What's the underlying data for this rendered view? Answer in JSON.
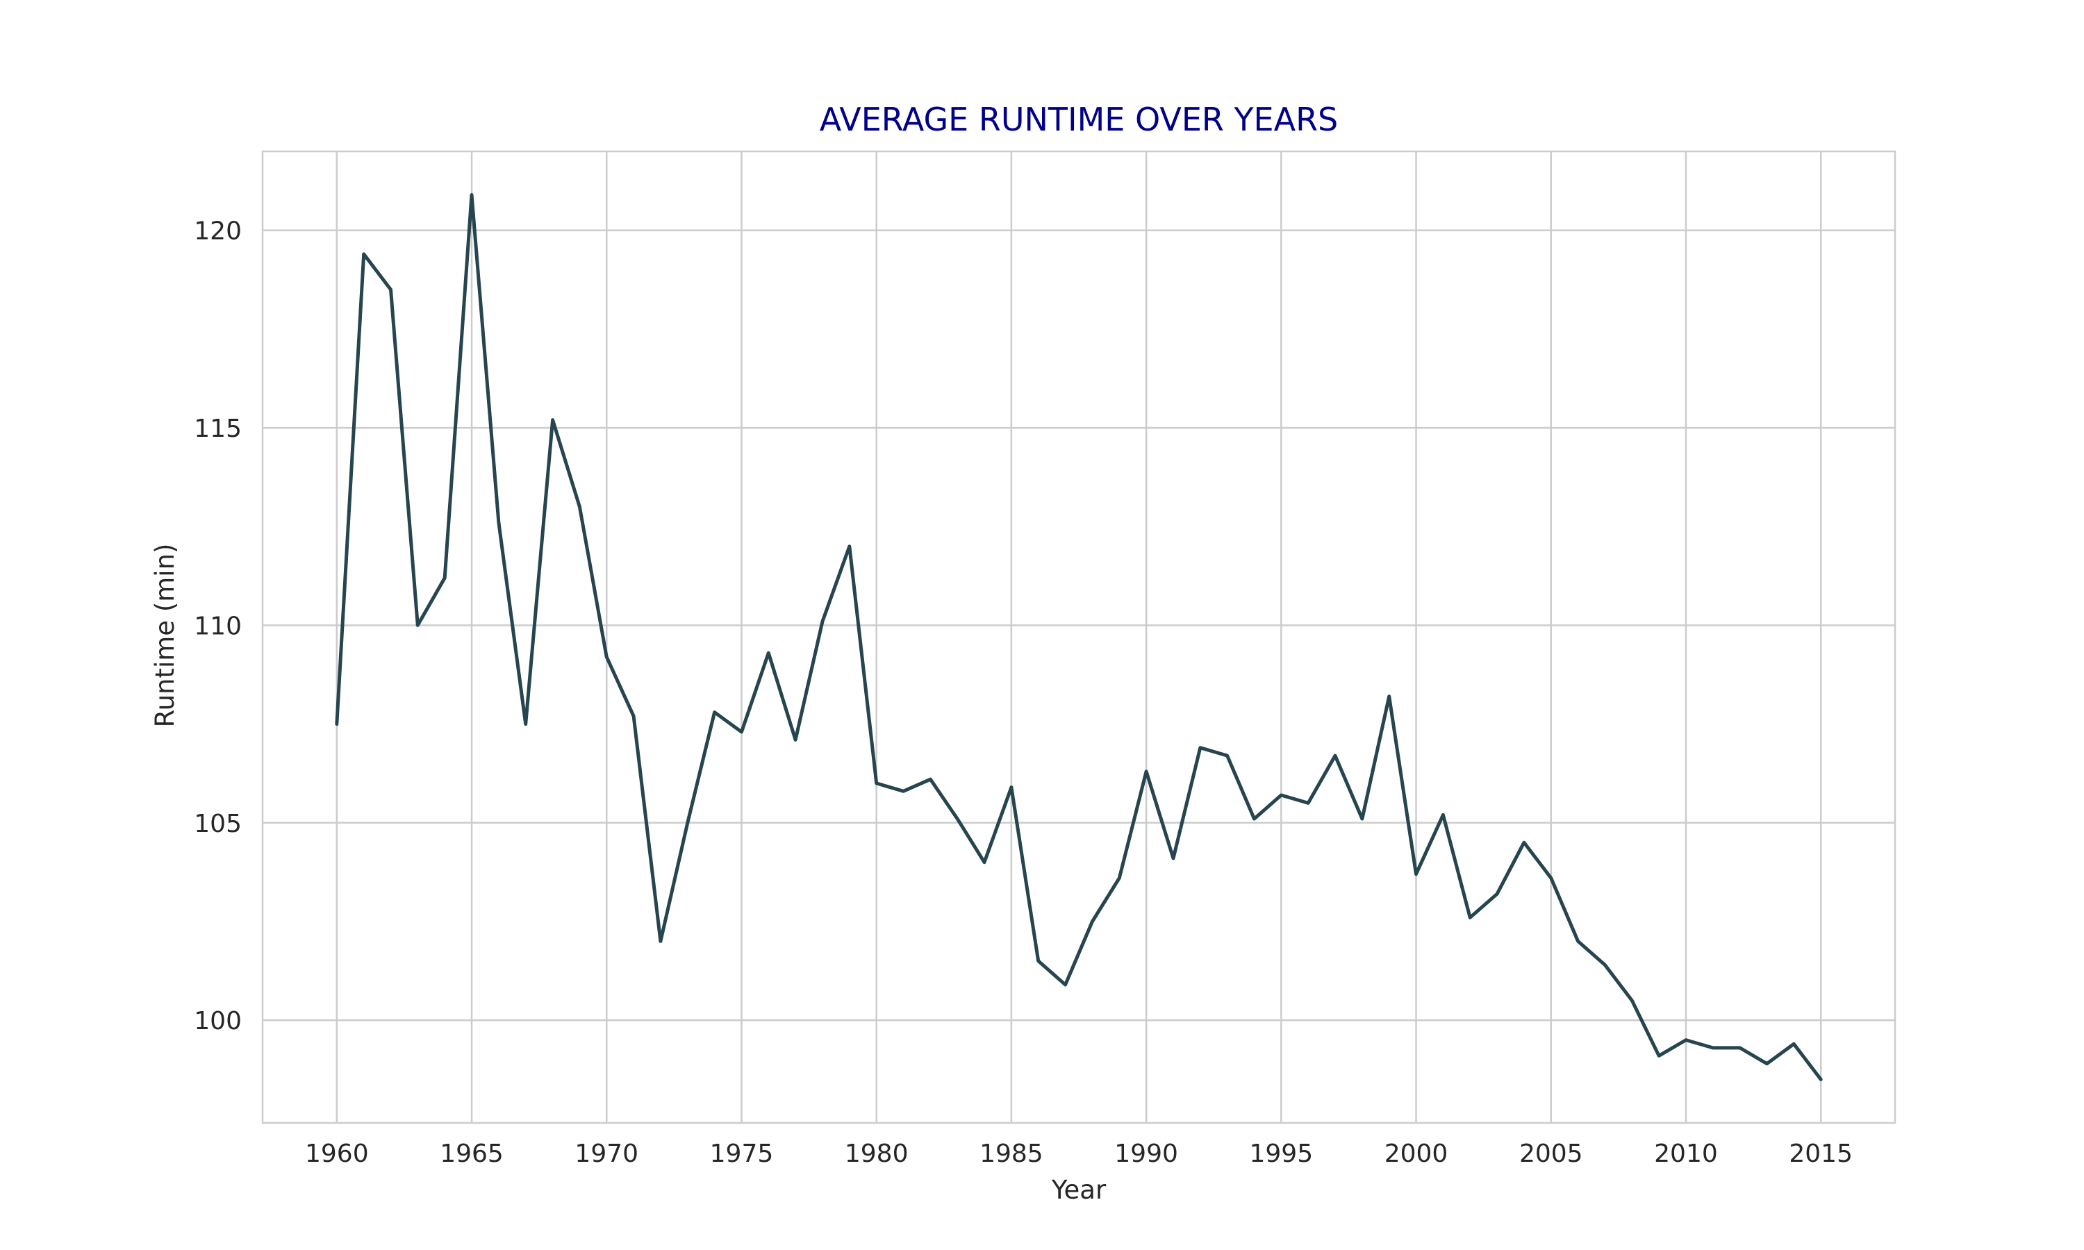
{
  "chart_data": {
    "type": "line",
    "title": "AVERAGE RUNTIME OVER YEARS",
    "xlabel": "Year",
    "ylabel": "Runtime (min)",
    "xlim": [
      1957.25,
      2017.75
    ],
    "ylim": [
      97.4,
      122.0
    ],
    "xticks": [
      1960,
      1965,
      1970,
      1975,
      1980,
      1985,
      1990,
      1995,
      2000,
      2005,
      2010,
      2015
    ],
    "yticks": [
      100,
      105,
      110,
      115,
      120
    ],
    "grid": true,
    "colors": {
      "line": "#26454f",
      "title": "#00008b",
      "grid": "#cccccc",
      "text": "#262626"
    },
    "x": [
      1960,
      1961,
      1962,
      1963,
      1964,
      1965,
      1966,
      1967,
      1968,
      1969,
      1970,
      1971,
      1972,
      1973,
      1974,
      1975,
      1976,
      1977,
      1978,
      1979,
      1980,
      1981,
      1982,
      1983,
      1984,
      1985,
      1986,
      1987,
      1988,
      1989,
      1990,
      1991,
      1992,
      1993,
      1994,
      1995,
      1996,
      1997,
      1998,
      1999,
      2000,
      2001,
      2002,
      2003,
      2004,
      2005,
      2006,
      2007,
      2008,
      2009,
      2010,
      2011,
      2012,
      2013,
      2014,
      2015
    ],
    "values": [
      107.5,
      119.4,
      118.5,
      110.0,
      111.2,
      120.9,
      112.6,
      107.5,
      115.2,
      113.0,
      109.2,
      107.7,
      102.0,
      105.0,
      107.8,
      107.3,
      109.3,
      107.1,
      110.1,
      112.0,
      106.0,
      105.8,
      106.1,
      105.1,
      104.0,
      105.9,
      101.5,
      100.9,
      102.5,
      103.6,
      106.3,
      104.1,
      106.9,
      106.7,
      105.1,
      105.7,
      105.5,
      106.7,
      105.1,
      108.2,
      103.7,
      105.2,
      102.6,
      103.2,
      104.5,
      103.6,
      102.0,
      101.4,
      100.5,
      99.1,
      99.5,
      99.3,
      99.3,
      98.9,
      99.4,
      98.5
    ]
  }
}
